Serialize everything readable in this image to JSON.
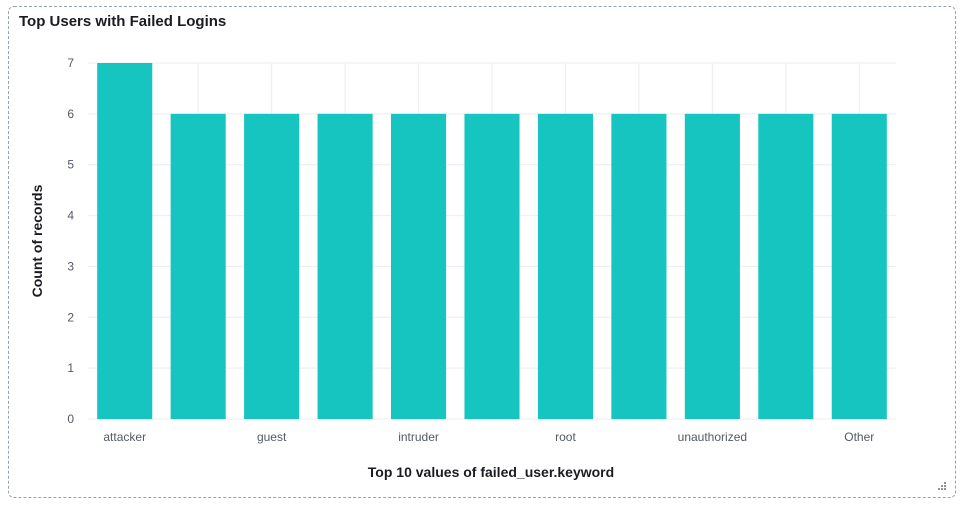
{
  "panel": {
    "title": "Top Users with Failed Logins"
  },
  "colors": {
    "bar": "#16c5c0",
    "grid": "#e9edf3",
    "tick_text": "#535966",
    "label_text": "#1a1c21"
  },
  "chart_data": {
    "type": "bar",
    "categories": [
      "attacker",
      "",
      "guest",
      "",
      "intruder",
      "",
      "root",
      "",
      "unauthorized",
      "",
      "Other"
    ],
    "values": [
      7,
      6,
      6,
      6,
      6,
      6,
      6,
      6,
      6,
      6,
      6
    ],
    "xlabel": "Top 10 values of failed_user.keyword",
    "ylabel": "Count of records",
    "ylim": [
      0,
      7
    ],
    "yticks": [
      0,
      1,
      2,
      3,
      4,
      5,
      6,
      7
    ],
    "grid": true
  }
}
